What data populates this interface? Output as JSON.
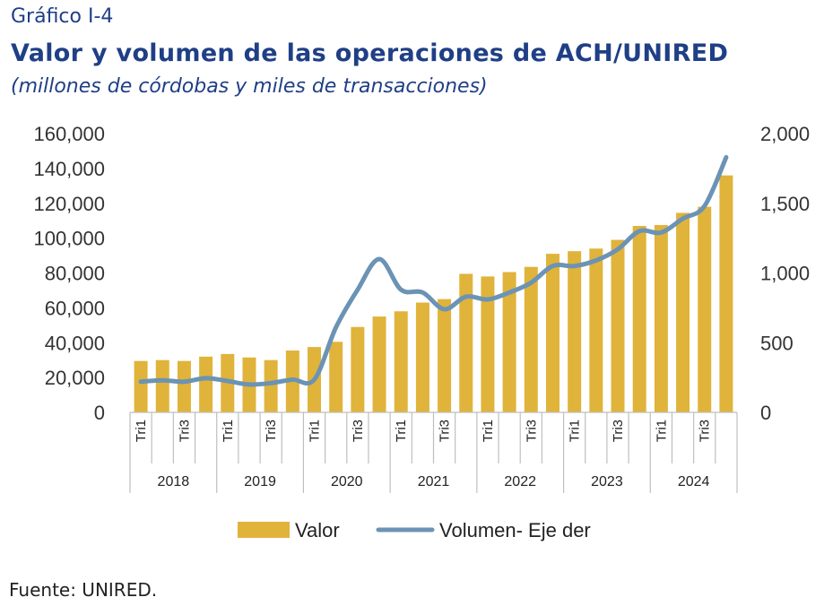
{
  "header": {
    "label": "Gráfico I-4",
    "title": "Valor y volumen de las operaciones de ACH/UNIRED",
    "subtitle": "(millones de córdobas y miles de transacciones)"
  },
  "source": "Fuente: UNIRED.",
  "colors": {
    "bar": "#e0b33a",
    "line": "#6b93b5",
    "axis": "#bfbfbf",
    "title": "#1f3f86"
  },
  "chart_data": {
    "type": "bar",
    "years": [
      "2018",
      "2019",
      "2020",
      "2021",
      "2022",
      "2023",
      "2024"
    ],
    "quarters_per_year": 4,
    "x_tick_labels": [
      "Tri1",
      "",
      "Tri3",
      ""
    ],
    "series": [
      {
        "name": "Valor",
        "type": "bar",
        "axis": "left",
        "values": [
          29500,
          30000,
          29500,
          32000,
          33500,
          31500,
          30000,
          35500,
          37500,
          40500,
          49000,
          55000,
          58000,
          63000,
          65000,
          79500,
          78000,
          80500,
          83500,
          91000,
          92500,
          94000,
          99000,
          107000,
          107500,
          114500,
          118000,
          136000
        ]
      },
      {
        "name": "Volumen- Eje der",
        "type": "line",
        "axis": "right",
        "values": [
          220,
          230,
          220,
          245,
          225,
          200,
          210,
          235,
          235,
          610,
          880,
          1100,
          880,
          860,
          740,
          830,
          810,
          860,
          930,
          1050,
          1050,
          1090,
          1170,
          1300,
          1290,
          1390,
          1480,
          1830
        ]
      }
    ],
    "y_left": {
      "min": 0,
      "max": 160000,
      "ticks": [
        "0",
        "20,000",
        "40,000",
        "60,000",
        "80,000",
        "100,000",
        "120,000",
        "140,000",
        "160,000"
      ]
    },
    "y_right": {
      "min": 0,
      "max": 2000,
      "ticks": [
        "0",
        "500",
        "1,000",
        "1,500",
        "2,000"
      ]
    },
    "legend": {
      "position": "bottom",
      "items": [
        "Valor",
        "Volumen- Eje der"
      ]
    },
    "grid": false
  }
}
